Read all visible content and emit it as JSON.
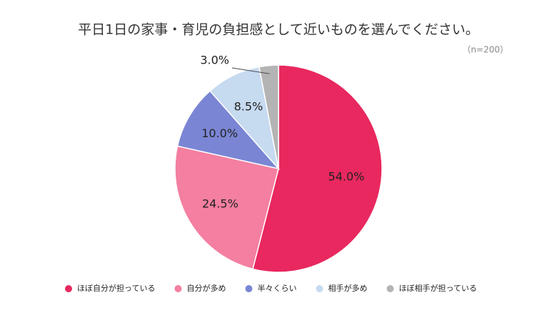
{
  "chart_data": {
    "type": "pie",
    "title": "平日1日の家事・育児の負担感として近いものを選んでください。",
    "subtitle": "（n=200）",
    "categories": [
      "ほぼ自分が担っている",
      "自分が多め",
      "半々くらい",
      "相手が多め",
      "ほぼ相手が担っている"
    ],
    "values": [
      54.0,
      24.5,
      10.0,
      8.5,
      3.0
    ],
    "value_labels": [
      "54.0%",
      "24.5%",
      "10.0%",
      "8.5%",
      "3.0%"
    ],
    "colors": [
      "#e8285e",
      "#f47fa0",
      "#7a86d4",
      "#c6daf0",
      "#b4b4b4"
    ],
    "legend": "bottom"
  }
}
